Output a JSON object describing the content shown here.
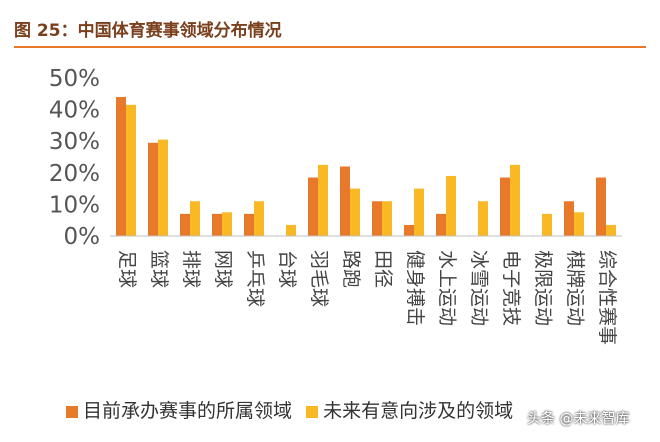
{
  "header": {
    "title": "图 25：中国体育赛事领域分布情况"
  },
  "watermark": "头条 @未来智库",
  "colors": {
    "series1": "#e8782a",
    "series2": "#f9b924",
    "axis": "#c0c0c0",
    "tick_text": "#555555",
    "cat_text": "#444444",
    "title_rule": "#e8782a"
  },
  "chart_data": {
    "type": "bar",
    "title": "",
    "xlabel": "",
    "ylabel": "",
    "ylim": [
      0,
      50
    ],
    "yticks": [
      "0%",
      "10%",
      "20%",
      "30%",
      "40%",
      "50%"
    ],
    "grid": false,
    "legend_position": "bottom",
    "categories": [
      "足球",
      "篮球",
      "排球",
      "网球",
      "乒乓球",
      "台球",
      "羽毛球",
      "路跑",
      "田径",
      "健身搏击",
      "水上运动",
      "冰雪运动",
      "电子竞技",
      "极限运动",
      "棋牌运动",
      "综合性赛事"
    ],
    "series": [
      {
        "name": "目前承办赛事的所属领域",
        "values": [
          44,
          29.5,
          7,
          7,
          7,
          0,
          18.5,
          22,
          11,
          3.5,
          7,
          0,
          18.5,
          0,
          11,
          18.5
        ]
      },
      {
        "name": "未来有意向涉及的领域",
        "values": [
          41.5,
          30.5,
          11,
          7.5,
          11,
          3.5,
          22.5,
          15,
          11,
          15,
          19,
          11,
          22.5,
          7,
          7.5,
          3.5
        ]
      }
    ]
  }
}
